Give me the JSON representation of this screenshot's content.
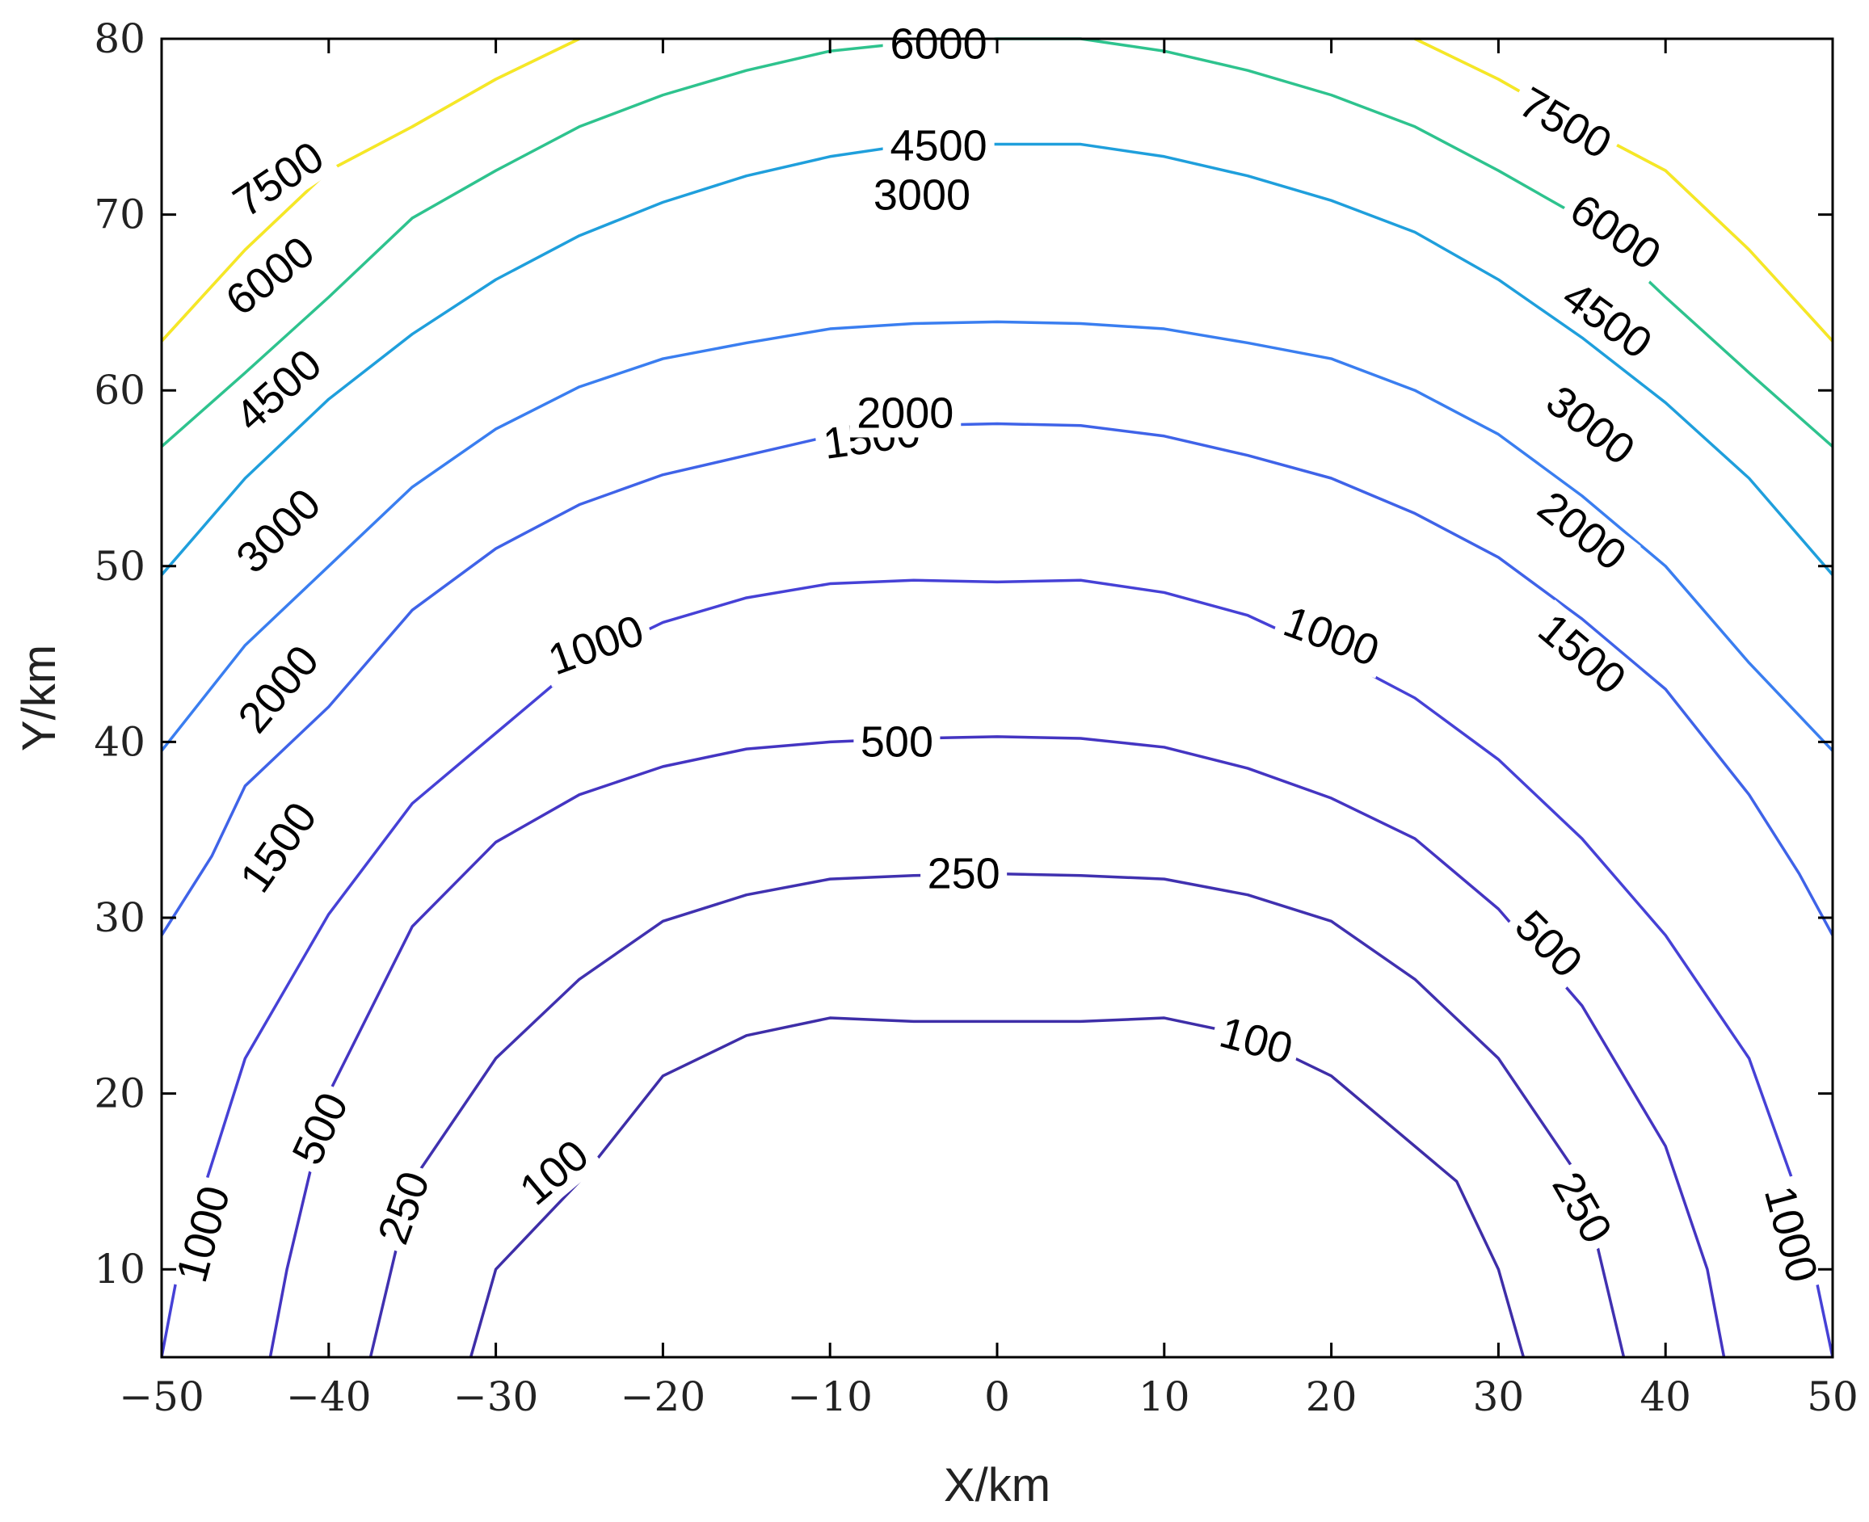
{
  "chart_data": {
    "type": "contour",
    "xlabel": "X/km",
    "ylabel": "Y/km",
    "xlim": [
      -50,
      50
    ],
    "ylim": [
      5,
      80
    ],
    "xticks": [
      -50,
      -40,
      -30,
      -20,
      -10,
      0,
      10,
      20,
      30,
      40,
      50
    ],
    "yticks": [
      10,
      20,
      30,
      40,
      50,
      60,
      70,
      80
    ],
    "xtick_labels": [
      "−50",
      "−40",
      "−30",
      "−20",
      "−10",
      "0",
      "10",
      "20",
      "30",
      "40",
      "50"
    ],
    "ytick_labels": [
      "10",
      "20",
      "30",
      "40",
      "50",
      "60",
      "70",
      "80"
    ],
    "grid": false,
    "levels": [
      {
        "level": 100,
        "color": "#3e2ea8",
        "points": [
          [
            -31.5,
            5
          ],
          [
            -30,
            10
          ],
          [
            -25,
            15
          ],
          [
            -20,
            21
          ],
          [
            -15,
            23.3
          ],
          [
            -10,
            24.3
          ],
          [
            -5,
            24.1
          ],
          [
            0,
            24.1
          ],
          [
            5,
            24.1
          ],
          [
            10,
            24.3
          ],
          [
            15,
            23.3
          ],
          [
            20,
            21
          ],
          [
            25,
            17
          ],
          [
            27.5,
            15
          ],
          [
            30,
            10
          ],
          [
            31.5,
            5
          ]
        ]
      },
      {
        "level": 250,
        "color": "#4031b0",
        "points": [
          [
            -37.5,
            5
          ],
          [
            -35,
            15
          ],
          [
            -30,
            22
          ],
          [
            -25,
            26.5
          ],
          [
            -20,
            29.8
          ],
          [
            -15,
            31.3
          ],
          [
            -10,
            32.2
          ],
          [
            -5,
            32.4
          ],
          [
            0,
            32.5
          ],
          [
            5,
            32.4
          ],
          [
            10,
            32.2
          ],
          [
            15,
            31.3
          ],
          [
            20,
            29.8
          ],
          [
            25,
            26.5
          ],
          [
            30,
            22
          ],
          [
            35,
            15
          ],
          [
            37.5,
            5
          ]
        ]
      },
      {
        "level": 500,
        "color": "#4435c2",
        "points": [
          [
            -43.5,
            5
          ],
          [
            -42.5,
            10
          ],
          [
            -40,
            20
          ],
          [
            -35,
            29.5
          ],
          [
            -30,
            34.3
          ],
          [
            -25,
            37
          ],
          [
            -20,
            38.6
          ],
          [
            -15,
            39.6
          ],
          [
            -10,
            40
          ],
          [
            -5,
            40.2
          ],
          [
            0,
            40.3
          ],
          [
            5,
            40.2
          ],
          [
            10,
            39.7
          ],
          [
            15,
            38.5
          ],
          [
            20,
            36.8
          ],
          [
            25,
            34.5
          ],
          [
            30,
            30.5
          ],
          [
            35,
            25
          ],
          [
            40,
            17
          ],
          [
            42.5,
            10
          ],
          [
            43.5,
            5
          ]
        ]
      },
      {
        "level": 1000,
        "color": "#4641d6",
        "points": [
          [
            -50,
            5
          ],
          [
            -49,
            10
          ],
          [
            -45,
            22
          ],
          [
            -40,
            30.2
          ],
          [
            -35,
            36.5
          ],
          [
            -30,
            40.5
          ],
          [
            -25,
            44.5
          ],
          [
            -20,
            46.8
          ],
          [
            -15,
            48.2
          ],
          [
            -10,
            49
          ],
          [
            -5,
            49.2
          ],
          [
            0,
            49.1
          ],
          [
            5,
            49.2
          ],
          [
            10,
            48.5
          ],
          [
            15,
            47.2
          ],
          [
            20,
            45
          ],
          [
            25,
            42.5
          ],
          [
            30,
            39
          ],
          [
            35,
            34.5
          ],
          [
            40,
            29
          ],
          [
            45,
            22
          ],
          [
            48,
            14
          ],
          [
            50,
            5
          ]
        ]
      },
      {
        "level": 1500,
        "color": "#3f63e8",
        "points": [
          [
            -50,
            29
          ],
          [
            -47,
            33.5
          ],
          [
            -45,
            37.5
          ],
          [
            -40,
            42
          ],
          [
            -35,
            47.5
          ],
          [
            -30,
            51
          ],
          [
            -25,
            53.5
          ],
          [
            -20,
            55.2
          ],
          [
            -15,
            56.3
          ],
          [
            -10,
            57.4
          ],
          [
            -5,
            58
          ],
          [
            0,
            58.1
          ],
          [
            5,
            58
          ],
          [
            10,
            57.4
          ],
          [
            15,
            56.3
          ],
          [
            20,
            55
          ],
          [
            25,
            53
          ],
          [
            30,
            50.5
          ],
          [
            35,
            47
          ],
          [
            40,
            43
          ],
          [
            45,
            37
          ],
          [
            48,
            32.5
          ],
          [
            50,
            29
          ]
        ]
      },
      {
        "level": 2000,
        "color": "#3a7ef0",
        "points": [
          [
            -50,
            39.5
          ],
          [
            -45,
            45.5
          ],
          [
            -40,
            50
          ],
          [
            -35,
            54.5
          ],
          [
            -30,
            57.8
          ],
          [
            -25,
            60.2
          ],
          [
            -20,
            61.8
          ],
          [
            -15,
            62.7
          ],
          [
            -10,
            63.5
          ],
          [
            -5,
            63.8
          ],
          [
            0,
            63.9
          ],
          [
            5,
            63.8
          ],
          [
            10,
            63.5
          ],
          [
            15,
            62.7
          ],
          [
            20,
            61.8
          ],
          [
            25,
            60
          ],
          [
            30,
            57.5
          ],
          [
            35,
            54
          ],
          [
            40,
            50
          ],
          [
            45,
            44.5
          ],
          [
            50,
            39.5
          ]
        ]
      },
      {
        "level": 3000,
        "color": "#1f9fdc",
        "points": [
          [
            -50,
            49.5
          ],
          [
            -45,
            55
          ],
          [
            -40,
            59.5
          ],
          [
            -35,
            63.2
          ],
          [
            -30,
            66.3
          ],
          [
            -25,
            68.8
          ],
          [
            -20,
            70.7
          ],
          [
            -15,
            72.2
          ],
          [
            -10,
            73.3
          ],
          [
            -5,
            74
          ],
          [
            0,
            74
          ],
          [
            5,
            74
          ],
          [
            10,
            73.3
          ],
          [
            15,
            72.2
          ],
          [
            20,
            70.8
          ],
          [
            25,
            69
          ],
          [
            30,
            66.3
          ],
          [
            35,
            63
          ],
          [
            40,
            59.3
          ],
          [
            45,
            55
          ],
          [
            50,
            49.5
          ]
        ]
      },
      {
        "level": 4500,
        "color": "#2ec38e",
        "points": [
          [
            -50,
            56.8
          ],
          [
            -45,
            61
          ],
          [
            -40,
            65.3
          ],
          [
            -35,
            69.8
          ],
          [
            -30,
            72.5
          ],
          [
            -25,
            75
          ],
          [
            -20,
            76.8
          ],
          [
            -15,
            78.2
          ],
          [
            -10,
            79.3
          ],
          [
            -5,
            79.8
          ],
          [
            0,
            80
          ],
          [
            5,
            80
          ],
          [
            10,
            79.3
          ],
          [
            15,
            78.2
          ],
          [
            20,
            76.8
          ],
          [
            25,
            75
          ],
          [
            30,
            72.5
          ],
          [
            35,
            69.8
          ],
          [
            40,
            65.3
          ],
          [
            45,
            61
          ],
          [
            50,
            56.8
          ]
        ]
      },
      {
        "level": 6000,
        "color": "#e8b330",
        "points": [
          [
            -50,
            62.8
          ],
          [
            -45,
            68
          ],
          [
            -40,
            72.5
          ],
          [
            -35,
            75
          ],
          [
            -30,
            77.7
          ],
          [
            -25,
            80
          ]
        ]
      },
      {
        "level": 6000,
        "color": "#e8b330",
        "points": [
          [
            25,
            80
          ],
          [
            30,
            77.7
          ],
          [
            35,
            75
          ],
          [
            40,
            72.5
          ],
          [
            45,
            68
          ],
          [
            50,
            62.8
          ]
        ]
      },
      {
        "level": 7500,
        "color": "#f5e826",
        "points": [
          [
            -50,
            62.8
          ],
          [
            -45,
            68
          ],
          [
            -40,
            72.5
          ],
          [
            -35,
            75
          ],
          [
            -30,
            77.7
          ],
          [
            -25,
            80
          ]
        ]
      },
      {
        "level": 7500,
        "color": "#f5e826",
        "points": [
          [
            25,
            80
          ],
          [
            30,
            77.7
          ],
          [
            35,
            75
          ],
          [
            40,
            72.5
          ],
          [
            45,
            68
          ],
          [
            50,
            62.8
          ]
        ]
      }
    ],
    "labels": [
      {
        "text": "100",
        "x": -26.5,
        "y": 15.5,
        "angle": -40
      },
      {
        "text": "100",
        "x": 15.5,
        "y": 23.0,
        "angle": 15
      },
      {
        "text": "250",
        "x": -35.5,
        "y": 13.5,
        "angle": -70
      },
      {
        "text": "250",
        "x": -2,
        "y": 32.5,
        "angle": 0
      },
      {
        "text": "250",
        "x": 35,
        "y": 13.5,
        "angle": 60
      },
      {
        "text": "500",
        "x": -40.5,
        "y": 18,
        "angle": -65
      },
      {
        "text": "500",
        "x": -6,
        "y": 40.0,
        "angle": 0
      },
      {
        "text": "500",
        "x": 33,
        "y": 28.5,
        "angle": 45
      },
      {
        "text": "1000",
        "x": -47.5,
        "y": 12,
        "angle": -75
      },
      {
        "text": "1000",
        "x": -24,
        "y": 45.5,
        "angle": -20
      },
      {
        "text": "1000",
        "x": 20,
        "y": 46.0,
        "angle": 20
      },
      {
        "text": "1000",
        "x": 47.5,
        "y": 12,
        "angle": 75
      },
      {
        "text": "1500",
        "x": -43,
        "y": 34,
        "angle": -55
      },
      {
        "text": "1500",
        "x": -7.5,
        "y": 57.3,
        "angle": -8
      },
      {
        "text": "1500",
        "x": 35,
        "y": 45,
        "angle": 40
      },
      {
        "text": "2000",
        "x": -43,
        "y": 43,
        "angle": -50
      },
      {
        "text": "2000",
        "x": -5.5,
        "y": 58.7,
        "angle": 0
      },
      {
        "text": "2000",
        "x": 35,
        "y": 52,
        "angle": 38
      },
      {
        "text": "3000",
        "x": -43,
        "y": 52,
        "angle": -45
      },
      {
        "text": "3000",
        "x": -4.5,
        "y": 71.1,
        "angle": 0
      },
      {
        "text": "3000",
        "x": 35.5,
        "y": 58,
        "angle": 38
      },
      {
        "text": "4500",
        "x": -43,
        "y": 60,
        "angle": -42
      },
      {
        "text": "4500",
        "x": -3.5,
        "y": 73.9,
        "angle": 0
      },
      {
        "text": "4500",
        "x": 36.5,
        "y": 64,
        "angle": 36
      },
      {
        "text": "6000",
        "x": -43.5,
        "y": 66.5,
        "angle": -38
      },
      {
        "text": "6000",
        "x": -3.5,
        "y": 79.7,
        "angle": 0
      },
      {
        "text": "6000",
        "x": 37,
        "y": 69,
        "angle": 34
      },
      {
        "text": "7500",
        "x": -43,
        "y": 72,
        "angle": -34
      },
      {
        "text": "7500",
        "x": 34,
        "y": 75.2,
        "angle": 30
      }
    ]
  }
}
